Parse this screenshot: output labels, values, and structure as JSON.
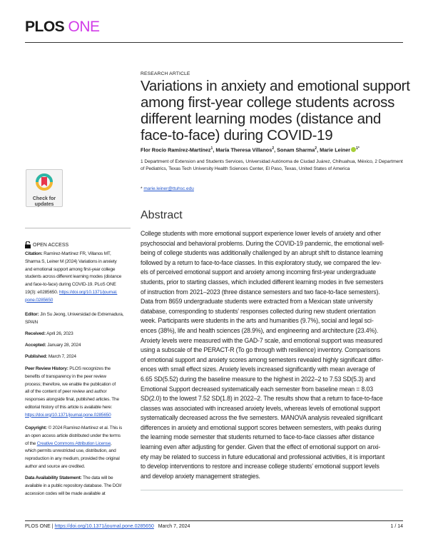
{
  "header": {
    "journal_part1": "PLOS",
    "journal_part2": "ONE"
  },
  "article": {
    "type": "RESEARCH ARTICLE",
    "title_lines": [
      "Variations in anxiety and emotional support",
      "among first-year college students across",
      "different learning modes (distance and",
      "face-to-face) during COVID-19"
    ],
    "authors": [
      {
        "name": "Flor Rocío Ramírez-Martínez",
        "sup": "1"
      },
      {
        "name": "María Theresa Villanos",
        "sup": "2"
      },
      {
        "name": "Sonam Sharma",
        "sup": "2"
      },
      {
        "name": "Marie Leiner",
        "sup": "1*"
      }
    ],
    "affiliations": "1  Department of Extension and Students Services, Universidad Autónoma de Ciudad Juárez, Chihuahua, México, 2  Department of Pediatrics, Texas Tech University Health Sciences Center, El Paso, Texas, United States of America",
    "email_prefix": "*",
    "email": "marie.leiner@ttuhsc.edu"
  },
  "abstract": {
    "heading": "Abstract",
    "lines": [
      "College students with more emotional support experience lower levels of anxiety and other",
      "psychosocial and behavioral problems. During the COVID-19 pandemic, the emotional well-",
      "being of college students was additionally challenged by an abrupt shift to distance learning",
      "followed by a return to face-to-face classes. In this exploratory study, we compared the lev-",
      "els of perceived emotional support and anxiety among incoming first-year undergraduate",
      "students, prior to starting classes, which included different learning modes in five semesters",
      "of instruction from 2021–2023 (three distance semesters and two face-to-face semesters).",
      "Data from 8659 undergraduate students were extracted from a Mexican state university",
      "database, corresponding to students’ responses collected during new student orientation",
      "week. Participants were students in the arts and humanities (9.7%), social and legal sci-",
      "ences (38%), life and health sciences (28.9%), and engineering and architecture (23.4%).",
      "Anxiety levels were measured with the GAD-7 scale, and emotional support was measured",
      "using a subscale of the PERACT-R (To go through with resilience) inventory. Comparisons",
      "of emotional support and anxiety scores among semesters revealed highly significant differ-",
      "ences with small effect sizes. Anxiety levels increased significantly with mean average of",
      "6.65 SD(5.52) during the baseline measure to the highest in 2022–2 to 7.53 SD(5.3) and",
      "Emotional Support decreased systematically each semester from baseline mean = 8.03",
      "SD(2.0) to the lowest 7.52 SD(1.8) in 2022–2. The results show that a return to face-to-face",
      "classes was associated with increased anxiety levels, whereas levels of emotional support",
      "systematically decreased across the five semesters. MANOVA analysis revealed significant",
      "differences in anxiety and emotional support scores between semesters, with peaks during",
      "the learning mode semester that students returned to face-to-face classes after distance",
      "learning even after adjusting for gender. Given that the effect of emotional support on anxi-",
      "ety may be related to success in future educational and professional activities, it is important",
      "to develop interventions to restore and increase college students’ emotional support levels",
      "and develop anxiety management strategies."
    ]
  },
  "sidebar": {
    "badge": {
      "line1": "Check for",
      "line2": "updates"
    },
    "open_access": "OPEN ACCESS",
    "citation": {
      "label": "Citation:",
      "lines": [
        "Ramírez-Martínez FR, Villanos MT,",
        "Sharma S, Leiner M (2024) Variations in anxiety",
        "and emotional support among first-year college",
        "students across different learning modes (distance",
        "and face-to-face) during COVID-19. PLoS ONE",
        "19(3): e0285650. "
      ],
      "link1": "https://doi.org/10.1371/journal.",
      "link2": "pone.0285650"
    },
    "editor": {
      "label": "Editor:",
      "lines": [
        "Jin Su Jeong, Universidad de Extremadura,",
        "SPAIN"
      ]
    },
    "received": {
      "label": "Received:",
      "value": "April 26, 2023"
    },
    "accepted": {
      "label": "Accepted:",
      "value": "January 28, 2024"
    },
    "published": {
      "label": "Published:",
      "value": "March 7, 2024"
    },
    "peer_review": {
      "label": "Peer Review History:",
      "lines": [
        "PLOS recognizes the",
        "benefits of transparency in the peer review",
        "process; therefore, we enable the publication of",
        "all of the content of peer review and author",
        "responses alongside final, published articles. The",
        "editorial history of this article is available here:"
      ],
      "link": "https://doi.org/10.1371/journal.pone.0285650"
    },
    "copyright": {
      "label": "Copyright:",
      "first": "© 2024 Ramírez-Martínez et al. This is",
      "lines": [
        "an open access article distributed under the terms"
      ],
      "of_the": "of the ",
      "license": "Creative Commons Attribution License",
      "comma": ",",
      "rest": [
        "which permits unrestricted use, distribution, and",
        "reproduction in any medium, provided the original",
        "author and source are credited."
      ]
    },
    "data_availability": {
      "label": "Data Availability Statement:",
      "first": "The data will be",
      "lines": [
        "available in a public repository database. The DOI/",
        "accession codes will be made available at"
      ]
    }
  },
  "footer": {
    "journal": "PLOS ONE",
    "sep": " | ",
    "doi": "https://doi.org/10.1371/journal.pone.0285650",
    "date": "March 7, 2024",
    "page": "1 / 14"
  },
  "colors": {
    "brand_one": "#d13ce8",
    "link": "#2255cc",
    "orcid": "#a6ce39"
  }
}
